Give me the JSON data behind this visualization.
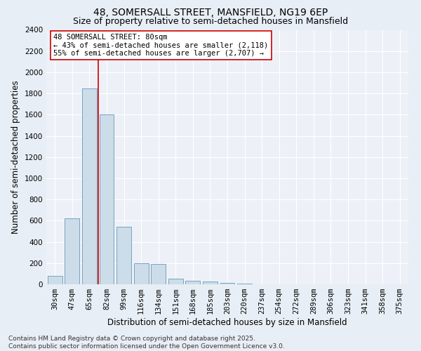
{
  "title_line1": "48, SOMERSALL STREET, MANSFIELD, NG19 6EP",
  "title_line2": "Size of property relative to semi-detached houses in Mansfield",
  "xlabel": "Distribution of semi-detached houses by size in Mansfield",
  "ylabel": "Number of semi-detached properties",
  "categories": [
    "30sqm",
    "47sqm",
    "65sqm",
    "82sqm",
    "99sqm",
    "116sqm",
    "134sqm",
    "151sqm",
    "168sqm",
    "185sqm",
    "203sqm",
    "220sqm",
    "237sqm",
    "254sqm",
    "272sqm",
    "289sqm",
    "306sqm",
    "323sqm",
    "341sqm",
    "358sqm",
    "375sqm"
  ],
  "values": [
    80,
    620,
    1850,
    1600,
    540,
    200,
    190,
    50,
    30,
    25,
    15,
    5,
    3,
    2,
    1,
    1,
    0,
    0,
    0,
    0,
    0
  ],
  "bar_color": "#ccdce8",
  "bar_edge_color": "#6699bb",
  "vline_x_index": 2,
  "vline_color": "#cc0000",
  "annotation_text": "48 SOMERSALL STREET: 80sqm\n← 43% of semi-detached houses are smaller (2,118)\n55% of semi-detached houses are larger (2,707) →",
  "annotation_box_color": "#ffffff",
  "annotation_box_edge": "#cc0000",
  "ylim": [
    0,
    2400
  ],
  "yticks": [
    0,
    200,
    400,
    600,
    800,
    1000,
    1200,
    1400,
    1600,
    1800,
    2000,
    2200,
    2400
  ],
  "footnote": "Contains HM Land Registry data © Crown copyright and database right 2025.\nContains public sector information licensed under the Open Government Licence v3.0.",
  "bg_color": "#e8eef5",
  "plot_bg_color": "#edf1f7",
  "grid_color": "#ffffff",
  "title_fontsize": 10,
  "subtitle_fontsize": 9,
  "axis_label_fontsize": 8.5,
  "tick_fontsize": 7.5,
  "annotation_fontsize": 7.5,
  "footnote_fontsize": 6.5
}
